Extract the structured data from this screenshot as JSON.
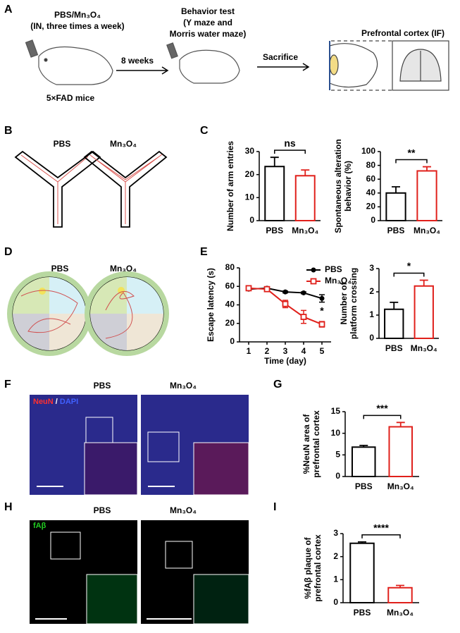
{
  "panels": {
    "A": {
      "letter": "A",
      "treatment": "PBS/Mn₃O₄",
      "schedule": "(IN, three times a week)",
      "mice": "5×FAD mice",
      "duration": "8 weeks",
      "test": [
        "Behavior test",
        "(Y maze and",
        "Morris water maze)"
      ],
      "sacrifice": "Sacrifice",
      "region": "Prefrontal cortex (IF)"
    },
    "B": {
      "letter": "B",
      "labels": [
        "PBS",
        "Mn₃O₄"
      ]
    },
    "C": {
      "letter": "C"
    },
    "D": {
      "letter": "D",
      "labels": [
        "PBS",
        "Mn₃O₄"
      ]
    },
    "E": {
      "letter": "E"
    },
    "F": {
      "letter": "F",
      "labels": [
        "PBS",
        "Mn₃O₄"
      ],
      "stain": [
        "NeuN",
        " / ",
        "DAPI"
      ]
    },
    "G": {
      "letter": "G"
    },
    "H": {
      "letter": "H",
      "labels": [
        "PBS",
        "Mn₃O₄"
      ],
      "stain": "fAβ"
    },
    "I": {
      "letter": "I"
    }
  },
  "chart_data": [
    {
      "type": "bar",
      "ylabel": [
        "Number of arm entries"
      ],
      "categories": [
        "PBS",
        "Mn₃O₄"
      ],
      "values": [
        23.5,
        19.5
      ],
      "errors": [
        4,
        2.5
      ],
      "colors": [
        "#000000",
        "#e0201b"
      ],
      "ylim": [
        0,
        30
      ],
      "yticks": [
        0,
        10,
        20,
        30
      ],
      "annotation": "ns"
    },
    {
      "type": "bar",
      "ylabel": [
        "Spontaneous alteration",
        "behavior (%)"
      ],
      "categories": [
        "PBS",
        "Mn₃O₄"
      ],
      "values": [
        40,
        72
      ],
      "errors": [
        9,
        6
      ],
      "colors": [
        "#000000",
        "#e0201b"
      ],
      "ylim": [
        0,
        100
      ],
      "yticks": [
        0,
        20,
        40,
        60,
        80,
        100
      ],
      "annotation": "**"
    },
    {
      "type": "line",
      "ylabel": [
        "Escape latency (s)"
      ],
      "xlabel": "Time (day)",
      "x": [
        1,
        2,
        3,
        4,
        5
      ],
      "xlim": [
        0.5,
        5.5
      ],
      "xticks": [
        1,
        2,
        3,
        4,
        5
      ],
      "ylim": [
        0,
        80
      ],
      "yticks": [
        0,
        20,
        40,
        60,
        80
      ],
      "series": [
        {
          "name": "PBS",
          "color": "#000000",
          "marker": "circle",
          "values": [
            57,
            58,
            54,
            53,
            47
          ],
          "errors": [
            1,
            1,
            1,
            1,
            4
          ]
        },
        {
          "name": "Mn₃O₄",
          "color": "#e0201b",
          "marker": "square",
          "values": [
            58,
            57,
            41,
            27,
            19
          ],
          "errors": [
            2,
            1,
            4,
            7,
            3
          ]
        }
      ],
      "annotation": "*"
    },
    {
      "type": "bar",
      "ylabel": [
        "Number of",
        "platform crossing"
      ],
      "categories": [
        "PBS",
        "Mn₃O₄"
      ],
      "values": [
        1.25,
        2.25
      ],
      "errors": [
        0.3,
        0.25
      ],
      "colors": [
        "#000000",
        "#e0201b"
      ],
      "ylim": [
        0,
        3
      ],
      "yticks": [
        0,
        1,
        2,
        3
      ],
      "annotation": "*"
    },
    {
      "type": "bar",
      "ylabel": [
        "%NeuN area of",
        "prefrontal cortex"
      ],
      "categories": [
        "PBS",
        "Mn₃O₄"
      ],
      "values": [
        6.8,
        11.5
      ],
      "errors": [
        0.4,
        1.0
      ],
      "colors": [
        "#000000",
        "#e0201b"
      ],
      "ylim": [
        0,
        15
      ],
      "yticks": [
        0,
        5,
        10,
        15
      ],
      "annotation": "***"
    },
    {
      "type": "bar",
      "ylabel": [
        "%fAβ plaque of",
        "prefrontal cortex"
      ],
      "categories": [
        "PBS",
        "Mn₃O₄"
      ],
      "values": [
        2.58,
        0.65
      ],
      "errors": [
        0.06,
        0.1
      ],
      "colors": [
        "#000000",
        "#e0201b"
      ],
      "ylim": [
        0,
        3
      ],
      "yticks": [
        0,
        1,
        2,
        3
      ],
      "annotation": "****"
    }
  ]
}
